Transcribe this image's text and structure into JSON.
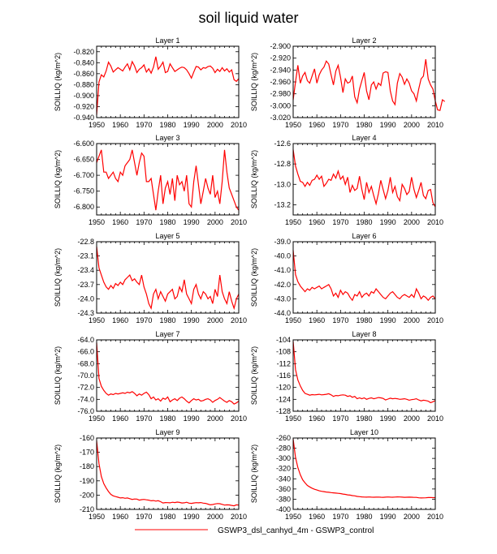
{
  "title": "soil liquid water",
  "legend": {
    "label": "GSWP3_dsl_canhyd_4m - GSWP3_control",
    "color": "#ff0000"
  },
  "colors": {
    "line": "#ff0000",
    "axis": "#000000"
  },
  "chart_data": [
    {
      "type": "line",
      "title": "Layer 1",
      "ylabel": "SOILLIQ  (kg/m^2)",
      "xlim": [
        1950,
        2010
      ],
      "xticks": [
        1950,
        1960,
        1970,
        1980,
        1990,
        2000,
        2010
      ],
      "xtick_labels": [
        "1950",
        "1960",
        "1970",
        "1980",
        "1990",
        "2000",
        "2010"
      ],
      "ylim": [
        -0.94,
        -0.81
      ],
      "yticks": [
        -0.94,
        -0.92,
        -0.9,
        -0.88,
        -0.86,
        -0.84,
        -0.82
      ],
      "ytick_labels": [
        "-0.940",
        "-0.920",
        "-0.900",
        "-0.880",
        "-0.860",
        "-0.840",
        "-0.820"
      ],
      "x_start": 1950,
      "x_step": 1,
      "values": [
        -0.935,
        -0.875,
        -0.862,
        -0.866,
        -0.855,
        -0.839,
        -0.846,
        -0.857,
        -0.853,
        -0.849,
        -0.852,
        -0.855,
        -0.848,
        -0.842,
        -0.853,
        -0.838,
        -0.846,
        -0.858,
        -0.852,
        -0.849,
        -0.844,
        -0.857,
        -0.851,
        -0.859,
        -0.848,
        -0.829,
        -0.852,
        -0.846,
        -0.839,
        -0.858,
        -0.856,
        -0.842,
        -0.849,
        -0.856,
        -0.853,
        -0.85,
        -0.848,
        -0.849,
        -0.853,
        -0.86,
        -0.868,
        -0.857,
        -0.847,
        -0.848,
        -0.853,
        -0.849,
        -0.85,
        -0.847,
        -0.846,
        -0.85,
        -0.858,
        -0.852,
        -0.856,
        -0.849,
        -0.855,
        -0.851,
        -0.857,
        -0.853,
        -0.871,
        -0.874,
        -0.869
      ]
    },
    {
      "type": "line",
      "title": "Layer 2",
      "ylabel": "SOILLIQ  (kg/m^2)",
      "xlim": [
        1950,
        2010
      ],
      "xticks": [
        1950,
        1960,
        1970,
        1980,
        1990,
        2000,
        2010
      ],
      "xtick_labels": [
        "1950",
        "1960",
        "1970",
        "1980",
        "1990",
        "2000",
        "2010"
      ],
      "ylim": [
        -3.02,
        -2.9
      ],
      "yticks": [
        -3.02,
        -3.0,
        -2.98,
        -2.96,
        -2.94,
        -2.92,
        -2.9
      ],
      "ytick_labels": [
        "-3.020",
        "-3.000",
        "-2.980",
        "-2.960",
        "-2.940",
        "-2.920",
        "-2.900"
      ],
      "x_start": 1950,
      "x_step": 1,
      "values": [
        -2.99,
        -2.96,
        -2.932,
        -2.962,
        -2.95,
        -2.944,
        -2.958,
        -2.962,
        -2.95,
        -2.938,
        -2.962,
        -2.948,
        -2.94,
        -2.935,
        -2.925,
        -2.93,
        -2.948,
        -2.965,
        -2.942,
        -2.932,
        -2.952,
        -2.978,
        -2.955,
        -2.962,
        -2.96,
        -2.95,
        -2.985,
        -2.995,
        -2.972,
        -2.958,
        -2.944,
        -2.975,
        -2.99,
        -2.965,
        -2.96,
        -2.972,
        -2.962,
        -2.966,
        -2.945,
        -2.943,
        -2.944,
        -2.975,
        -2.992,
        -2.998,
        -2.962,
        -2.946,
        -2.952,
        -2.964,
        -2.955,
        -2.962,
        -2.975,
        -2.98,
        -2.992,
        -2.972,
        -2.955,
        -2.95,
        -2.922,
        -2.955,
        -2.965,
        -2.972,
        -2.992,
        -3.007,
        -3.008,
        -2.99,
        -2.993
      ]
    },
    {
      "type": "line",
      "title": "Layer 3",
      "ylabel": "SOILLIQ  (kg/m^2)",
      "xlim": [
        1950,
        2010
      ],
      "xticks": [
        1950,
        1960,
        1970,
        1980,
        1990,
        2000,
        2010
      ],
      "xtick_labels": [
        "1950",
        "1960",
        "1970",
        "1980",
        "1990",
        "2000",
        "2010"
      ],
      "ylim": [
        -6.825,
        -6.6
      ],
      "yticks": [
        -6.8,
        -6.75,
        -6.7,
        -6.65,
        -6.6
      ],
      "ytick_labels": [
        "-6.800",
        "-6.750",
        "-6.700",
        "-6.650",
        "-6.600"
      ],
      "x_start": 1950,
      "x_step": 1,
      "values": [
        -6.66,
        -6.64,
        -6.62,
        -6.69,
        -6.69,
        -6.71,
        -6.7,
        -6.69,
        -6.71,
        -6.72,
        -6.69,
        -6.7,
        -6.67,
        -6.66,
        -6.65,
        -6.62,
        -6.66,
        -6.7,
        -6.66,
        -6.63,
        -6.64,
        -6.72,
        -6.72,
        -6.71,
        -6.76,
        -6.81,
        -6.75,
        -6.7,
        -6.79,
        -6.74,
        -6.72,
        -6.76,
        -6.71,
        -6.78,
        -6.7,
        -6.73,
        -6.72,
        -6.75,
        -6.7,
        -6.79,
        -6.8,
        -6.72,
        -6.67,
        -6.73,
        -6.79,
        -6.75,
        -6.71,
        -6.74,
        -6.76,
        -6.7,
        -6.77,
        -6.75,
        -6.79,
        -6.72,
        -6.62,
        -6.69,
        -6.74,
        -6.76,
        -6.78,
        -6.8,
        -6.81
      ]
    },
    {
      "type": "line",
      "title": "Layer 4",
      "ylabel": "SOILLIQ  (kg/m^2)",
      "xlim": [
        1950,
        2010
      ],
      "xticks": [
        1950,
        1960,
        1970,
        1980,
        1990,
        2000,
        2010
      ],
      "xtick_labels": [
        "1950",
        "1960",
        "1970",
        "1980",
        "1990",
        "2000",
        "2010"
      ],
      "ylim": [
        -13.3,
        -12.6
      ],
      "yticks": [
        -13.2,
        -13.0,
        -12.8,
        -12.6
      ],
      "ytick_labels": [
        "-13.2",
        "-13.0",
        "-12.8",
        "-12.6"
      ],
      "x_start": 1950,
      "x_step": 1,
      "values": [
        -12.66,
        -12.82,
        -12.9,
        -12.97,
        -12.98,
        -13.02,
        -12.98,
        -13.01,
        -12.96,
        -12.95,
        -12.91,
        -12.95,
        -12.92,
        -13.02,
        -12.99,
        -12.95,
        -12.96,
        -12.9,
        -12.94,
        -12.87,
        -12.95,
        -12.92,
        -13.0,
        -12.93,
        -13.08,
        -13.01,
        -13.06,
        -13.04,
        -12.92,
        -13.05,
        -13.15,
        -12.98,
        -13.08,
        -13.02,
        -13.11,
        -13.19,
        -13.09,
        -12.96,
        -13.05,
        -13.14,
        -13.06,
        -12.93,
        -13.08,
        -13.02,
        -13.12,
        -13.16,
        -13.0,
        -13.04,
        -13.1,
        -13.07,
        -12.93,
        -13.05,
        -13.13,
        -13.06,
        -12.98,
        -13.11,
        -13.14,
        -13.06,
        -13.05,
        -13.18,
        -13.22
      ]
    },
    {
      "type": "line",
      "title": "Layer 5",
      "ylabel": "SOILLIQ  (kg/m^2)",
      "xlim": [
        1950,
        2010
      ],
      "xticks": [
        1950,
        1960,
        1970,
        1980,
        1990,
        2000,
        2010
      ],
      "xtick_labels": [
        "1950",
        "1960",
        "1970",
        "1980",
        "1990",
        "2000",
        "2010"
      ],
      "ylim": [
        -24.3,
        -22.8
      ],
      "yticks": [
        -24.3,
        -24.0,
        -23.7,
        -23.4,
        -23.1,
        -22.8
      ],
      "ytick_labels": [
        "-24.3",
        "-24.0",
        "-23.7",
        "-23.4",
        "-23.1",
        "-22.8"
      ],
      "x_start": 1950,
      "x_step": 1,
      "values": [
        -22.9,
        -23.35,
        -23.5,
        -23.65,
        -23.75,
        -23.8,
        -23.72,
        -23.78,
        -23.68,
        -23.72,
        -23.65,
        -23.7,
        -23.6,
        -23.55,
        -23.5,
        -23.62,
        -23.58,
        -23.65,
        -23.7,
        -23.5,
        -23.75,
        -23.9,
        -24.1,
        -24.2,
        -23.9,
        -23.8,
        -24.0,
        -23.85,
        -23.95,
        -24.05,
        -23.9,
        -23.85,
        -23.8,
        -24.0,
        -23.95,
        -23.75,
        -23.85,
        -23.6,
        -23.9,
        -24.0,
        -24.1,
        -23.8,
        -23.7,
        -23.9,
        -24.0,
        -23.85,
        -23.9,
        -24.0,
        -23.95,
        -24.1,
        -23.8,
        -23.95,
        -23.5,
        -23.85,
        -24.0,
        -24.1,
        -23.85,
        -24.05,
        -24.2,
        -24.0,
        -23.9
      ]
    },
    {
      "type": "line",
      "title": "Layer 6",
      "ylabel": "SOILLIQ  (kg/m^2)",
      "xlim": [
        1950,
        2010
      ],
      "xticks": [
        1950,
        1960,
        1970,
        1980,
        1990,
        2000,
        2010
      ],
      "xtick_labels": [
        "1950",
        "1960",
        "1970",
        "1980",
        "1990",
        "2000",
        "2010"
      ],
      "ylim": [
        -44.0,
        -39.0
      ],
      "yticks": [
        -44.0,
        -43.0,
        -42.0,
        -41.0,
        -40.0,
        -39.0
      ],
      "ytick_labels": [
        "-44.0",
        "-43.0",
        "-42.0",
        "-41.0",
        "-40.0",
        "-39.0"
      ],
      "x_start": 1950,
      "x_step": 1,
      "values": [
        -39.6,
        -41.3,
        -41.8,
        -42.1,
        -42.3,
        -42.5,
        -42.3,
        -42.4,
        -42.2,
        -42.3,
        -42.2,
        -42.1,
        -42.3,
        -42.2,
        -42.1,
        -42.0,
        -42.3,
        -42.8,
        -42.6,
        -42.9,
        -42.4,
        -42.7,
        -42.5,
        -42.6,
        -42.9,
        -43.1,
        -42.7,
        -42.8,
        -42.5,
        -42.9,
        -42.7,
        -42.6,
        -42.8,
        -42.5,
        -42.6,
        -42.3,
        -42.5,
        -42.7,
        -42.9,
        -43.0,
        -42.8,
        -42.6,
        -42.5,
        -42.7,
        -42.9,
        -43.0,
        -42.8,
        -42.7,
        -42.8,
        -42.9,
        -42.7,
        -42.9,
        -42.3,
        -42.6,
        -43.0,
        -42.8,
        -42.9,
        -43.1,
        -42.9,
        -42.8,
        -43.0
      ]
    },
    {
      "type": "line",
      "title": "Layer 7",
      "ylabel": "SOILLIQ  (kg/m^2)",
      "xlim": [
        1950,
        2010
      ],
      "xticks": [
        1950,
        1960,
        1970,
        1980,
        1990,
        2000,
        2010
      ],
      "xtick_labels": [
        "1950",
        "1960",
        "1970",
        "1980",
        "1990",
        "2000",
        "2010"
      ],
      "ylim": [
        -76.0,
        -64.0
      ],
      "yticks": [
        -76.0,
        -74.0,
        -72.0,
        -70.0,
        -68.0,
        -66.0,
        -64.0
      ],
      "ytick_labels": [
        "-76.0",
        "-74.0",
        "-72.0",
        "-70.0",
        "-68.0",
        "-66.0",
        "-64.0"
      ],
      "x_start": 1950,
      "x_step": 1,
      "values": [
        -64.5,
        -70.5,
        -71.8,
        -72.5,
        -73.0,
        -73.3,
        -73.1,
        -73.2,
        -73.0,
        -73.1,
        -73.0,
        -72.9,
        -73.0,
        -72.8,
        -72.9,
        -72.7,
        -73.0,
        -73.4,
        -73.1,
        -73.3,
        -73.0,
        -72.8,
        -73.2,
        -73.9,
        -73.6,
        -74.1,
        -73.9,
        -74.3,
        -73.8,
        -74.0,
        -73.6,
        -74.4,
        -74.1,
        -73.9,
        -74.2,
        -73.8,
        -73.6,
        -73.9,
        -74.3,
        -74.6,
        -74.2,
        -73.9,
        -74.1,
        -74.0,
        -74.3,
        -74.2,
        -74.0,
        -73.9,
        -74.1,
        -74.5,
        -74.2,
        -74.0,
        -73.7,
        -74.0,
        -74.3,
        -74.5,
        -74.2,
        -74.4,
        -74.8,
        -74.6,
        -74.3
      ]
    },
    {
      "type": "line",
      "title": "Layer 8",
      "ylabel": "SOILLIQ  (kg/m^2)",
      "xlim": [
        1950,
        2010
      ],
      "xticks": [
        1950,
        1960,
        1970,
        1980,
        1990,
        2000,
        2010
      ],
      "xtick_labels": [
        "1950",
        "1960",
        "1970",
        "1980",
        "1990",
        "2000",
        "2010"
      ],
      "ylim": [
        -128,
        -104
      ],
      "yticks": [
        -128,
        -124,
        -120,
        -116,
        -112,
        -108,
        -104
      ],
      "ytick_labels": [
        "-128",
        "-124",
        "-120",
        "-116",
        "-112",
        "-108",
        "-104"
      ],
      "x_start": 1950,
      "x_step": 1,
      "values": [
        -104.5,
        -114.0,
        -117.5,
        -119.5,
        -121.0,
        -122.0,
        -122.3,
        -122.6,
        -122.4,
        -122.5,
        -122.4,
        -122.3,
        -122.5,
        -122.4,
        -122.3,
        -122.1,
        -122.5,
        -123.0,
        -122.7,
        -122.8,
        -122.6,
        -122.5,
        -122.6,
        -123.0,
        -122.8,
        -123.3,
        -123.0,
        -123.8,
        -123.5,
        -123.8,
        -123.5,
        -124.0,
        -123.7,
        -123.5,
        -123.8,
        -123.6,
        -123.4,
        -123.5,
        -123.7,
        -124.2,
        -123.9,
        -123.6,
        -123.8,
        -123.7,
        -123.8,
        -124.0,
        -123.9,
        -123.8,
        -124.0,
        -124.3,
        -124.1,
        -124.0,
        -123.8,
        -124.2,
        -124.5,
        -124.3,
        -124.4,
        -124.6,
        -125.1,
        -124.8,
        -124.4
      ]
    },
    {
      "type": "line",
      "title": "Layer 9",
      "ylabel": "SOILLIQ  (kg/m^2)",
      "xlim": [
        1950,
        2010
      ],
      "xticks": [
        1950,
        1960,
        1970,
        1980,
        1990,
        2000,
        2010
      ],
      "xtick_labels": [
        "1950",
        "1960",
        "1970",
        "1980",
        "1990",
        "2000",
        "2010"
      ],
      "ylim": [
        -210,
        -160
      ],
      "yticks": [
        -210,
        -200,
        -190,
        -180,
        -170,
        -160
      ],
      "ytick_labels": [
        "-210",
        "-200",
        "-190",
        "-180",
        "-170",
        "-160"
      ],
      "x_start": 1950,
      "x_step": 1,
      "values": [
        -162.0,
        -178.0,
        -187.0,
        -192.0,
        -195.0,
        -197.5,
        -199.5,
        -200.5,
        -201.0,
        -201.5,
        -202.0,
        -201.8,
        -202.2,
        -202.0,
        -202.5,
        -203.0,
        -202.7,
        -202.8,
        -203.5,
        -203.2,
        -203.0,
        -203.3,
        -203.5,
        -204.0,
        -203.8,
        -204.2,
        -203.9,
        -204.6,
        -205.5,
        -205.2,
        -205.3,
        -205.4,
        -205.0,
        -205.2,
        -204.9,
        -205.1,
        -205.5,
        -205.4,
        -205.0,
        -205.6,
        -205.8,
        -205.5,
        -205.3,
        -205.4,
        -205.2,
        -205.6,
        -205.8,
        -206.3,
        -206.8,
        -206.6,
        -206.2,
        -205.9,
        -206.0,
        -206.5,
        -207.0,
        -206.8,
        -206.9,
        -207.2,
        -207.5,
        -206.8,
        -207.0
      ]
    },
    {
      "type": "line",
      "title": "Layer 10",
      "ylabel": "SOILLIQ  (kg/m^2)",
      "xlim": [
        1950,
        2010
      ],
      "xticks": [
        1950,
        1960,
        1970,
        1980,
        1990,
        2000,
        2010
      ],
      "xtick_labels": [
        "1950",
        "1960",
        "1970",
        "1980",
        "1990",
        "2000",
        "2010"
      ],
      "ylim": [
        -400,
        -260
      ],
      "yticks": [
        -400,
        -380,
        -360,
        -340,
        -320,
        -300,
        -280,
        -260
      ],
      "ytick_labels": [
        "-400",
        "-380",
        "-360",
        "-340",
        "-320",
        "-300",
        "-280",
        "-260"
      ],
      "x_start": 1950,
      "x_step": 1,
      "values": [
        -262.0,
        -298.0,
        -318.0,
        -332.0,
        -342.0,
        -348.0,
        -353.0,
        -356.0,
        -358.5,
        -360.5,
        -362.0,
        -363.5,
        -364.5,
        -365.2,
        -366.0,
        -366.5,
        -367.0,
        -367.5,
        -368.0,
        -368.5,
        -369.0,
        -370.0,
        -370.5,
        -371.5,
        -372.0,
        -373.0,
        -373.5,
        -374.5,
        -375.0,
        -375.5,
        -375.8,
        -376.0,
        -375.7,
        -375.9,
        -376.2,
        -376.0,
        -375.8,
        -376.1,
        -376.3,
        -376.0,
        -375.6,
        -375.9,
        -376.1,
        -375.8,
        -375.5,
        -375.7,
        -376.0,
        -376.3,
        -376.1,
        -375.9,
        -376.2,
        -376.4,
        -376.5,
        -377.2,
        -377.6,
        -377.4,
        -377.2,
        -376.8,
        -376.6,
        -376.9,
        -377.0
      ]
    }
  ]
}
